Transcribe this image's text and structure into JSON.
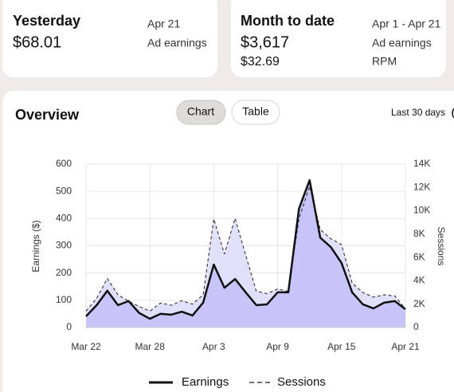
{
  "cards": [
    {
      "title": "Yesterday",
      "date": "Apr 21",
      "value": "$68.01",
      "metric": "Ad earnings"
    },
    {
      "title": "Month to date",
      "date": "Apr 1 - Apr 21",
      "value": "$3,617",
      "metric": "Ad earnings",
      "value2": "$32.69",
      "metric2": "RPM"
    }
  ],
  "overview": {
    "title": "Overview",
    "tabs": [
      "Chart",
      "Table"
    ],
    "range": "Last 30 days"
  },
  "chart_data": {
    "type": "area",
    "categories": [
      "Mar 22",
      null,
      null,
      null,
      null,
      null,
      "Mar 28",
      null,
      null,
      null,
      null,
      null,
      "Apr 3",
      null,
      null,
      null,
      null,
      null,
      "Apr 9",
      null,
      null,
      null,
      null,
      null,
      "Apr 15",
      null,
      null,
      null,
      null,
      null,
      "Apr 21"
    ],
    "series": [
      {
        "name": "Sessions",
        "axis": "y2",
        "color": "#222222",
        "fill": "#e1e0fb",
        "dash": true,
        "values": [
          1400,
          2500,
          4200,
          2800,
          2250,
          1800,
          1400,
          2100,
          1900,
          2300,
          2000,
          2800,
          9300,
          6300,
          9350,
          6200,
          3100,
          2900,
          3300,
          3100,
          9300,
          12100,
          8400,
          7600,
          7100,
          3800,
          3000,
          2600,
          2800,
          2700,
          1600
        ]
      },
      {
        "name": "Earnings",
        "color": "#111111",
        "fill": "#c6c4f8",
        "dash": false,
        "values": [
          41,
          82,
          135,
          82,
          97,
          53,
          32,
          50,
          47,
          58,
          44,
          91,
          231,
          146,
          178,
          129,
          82,
          85,
          129,
          129,
          436,
          541,
          330,
          295,
          237,
          129,
          85,
          70,
          91,
          97,
          67
        ]
      }
    ],
    "ylabel": "Earnings ($)",
    "y2label": "Sessions",
    "ylim": [
      0,
      600
    ],
    "yticks": [
      0,
      100,
      200,
      300,
      400,
      500,
      600
    ],
    "y2lim": [
      0,
      14000
    ],
    "y2ticks": [
      0,
      {
        "value": 2000,
        "label": "2K"
      },
      {
        "value": 4000,
        "label": "4K"
      },
      {
        "value": 6000,
        "label": "6K"
      },
      {
        "value": 8000,
        "label": "8K"
      },
      {
        "value": 10000,
        "label": "10K"
      },
      {
        "value": 12000,
        "label": "12K"
      },
      {
        "value": 14000,
        "label": "14K"
      }
    ],
    "grid": true,
    "legend": "bottom"
  }
}
